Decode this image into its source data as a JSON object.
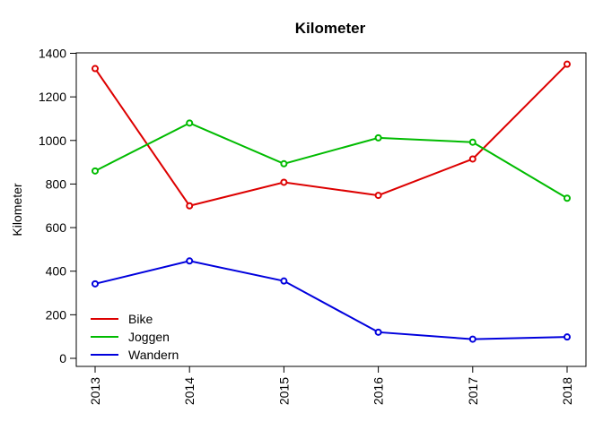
{
  "chart_data": {
    "type": "line",
    "title": "Kilometer",
    "xlabel": "",
    "ylabel": "Kilometer",
    "x": [
      "2013",
      "2014",
      "2015",
      "2016",
      "2017",
      "2018"
    ],
    "ylim": [
      -50,
      1400
    ],
    "yticks": [
      0,
      200,
      400,
      600,
      800,
      1000,
      1200,
      1400
    ],
    "grid": false,
    "legend_position": "bottom-left",
    "series": [
      {
        "name": "Bike",
        "color": "#dd0000",
        "values": [
          1330,
          700,
          808,
          748,
          915,
          1350
        ]
      },
      {
        "name": "Joggen",
        "color": "#00bb00",
        "values": [
          860,
          1080,
          893,
          1012,
          992,
          735
        ]
      },
      {
        "name": "Wandern",
        "color": "#0000dd",
        "values": [
          342,
          447,
          355,
          120,
          88,
          98
        ]
      }
    ]
  }
}
